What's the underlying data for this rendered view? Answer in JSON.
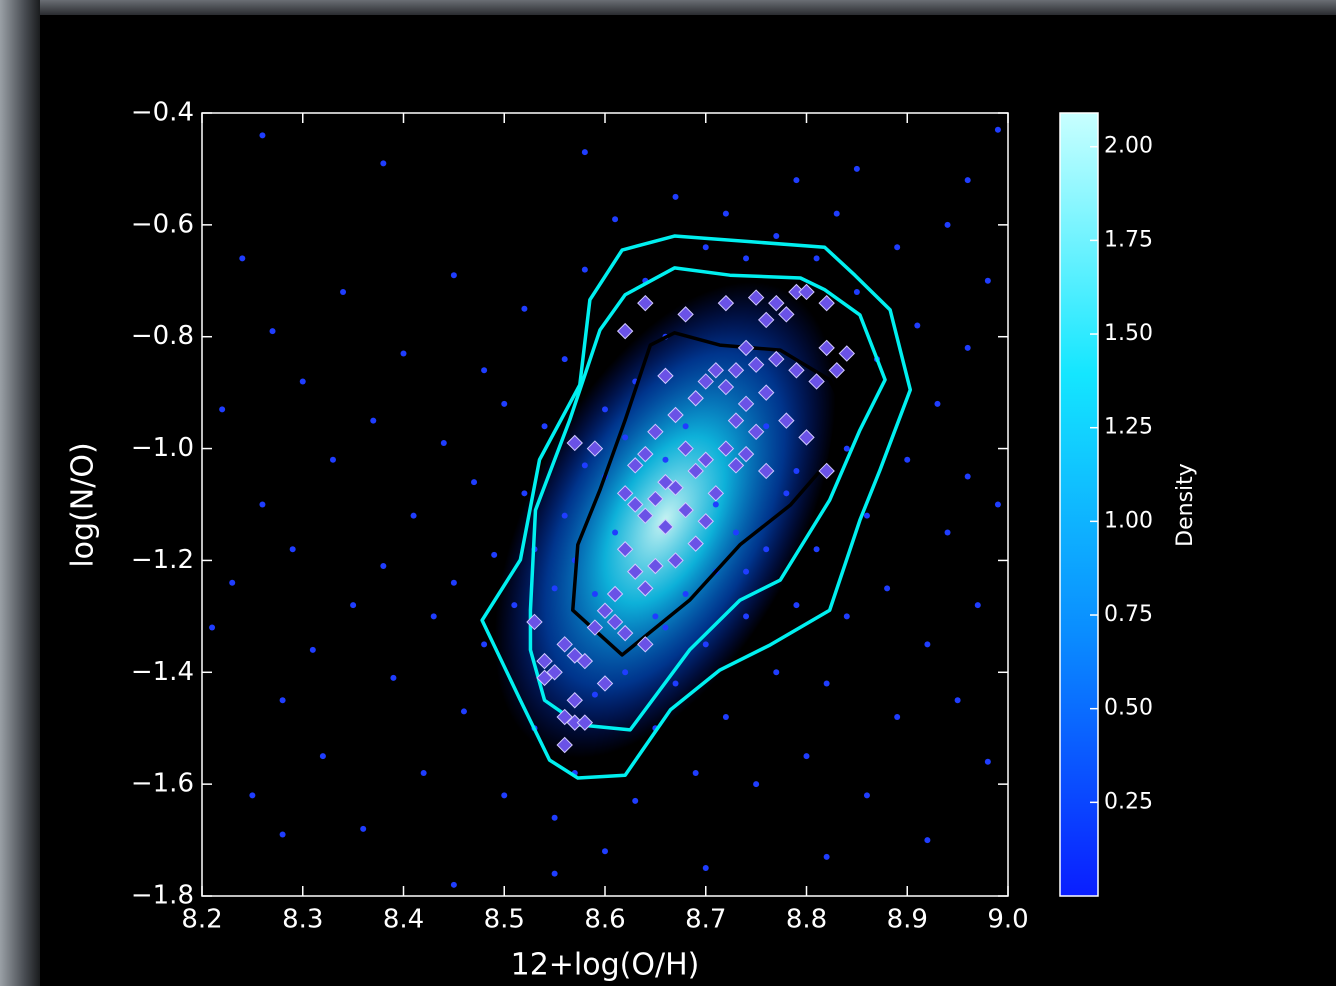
{
  "chart_data": {
    "type": "scatter",
    "xlabel": "12+log(O/H)",
    "ylabel": "log(N/O)",
    "xlim": [
      8.2,
      9.0
    ],
    "ylim": [
      -1.8,
      -0.4
    ],
    "xticks": [
      8.2,
      8.3,
      8.4,
      8.5,
      8.6,
      8.7,
      8.8,
      8.9,
      {
        "value": 9.0,
        "label": "9.0"
      }
    ],
    "yticks": [
      {
        "value": -1.8,
        "label": "−1.8"
      },
      {
        "value": -1.6,
        "label": "−1.6"
      },
      {
        "value": -1.4,
        "label": "−1.4"
      },
      {
        "value": -1.2,
        "label": "−1.2"
      },
      {
        "value": -1.0,
        "label": "−1.0"
      },
      {
        "value": -0.8,
        "label": "−0.8"
      },
      {
        "value": -0.6,
        "label": "−0.6"
      },
      {
        "value": -0.4,
        "label": "−0.4"
      }
    ],
    "series": [
      {
        "marker": "circle",
        "color": "#1f3dff",
        "x": [
          8.21,
          8.22,
          8.23,
          8.24,
          8.25,
          8.26,
          8.27,
          8.28,
          8.29,
          8.3,
          8.31,
          8.32,
          8.33,
          8.34,
          8.35,
          8.36,
          8.37,
          8.38,
          8.39,
          8.4,
          8.41,
          8.42,
          8.43,
          8.44,
          8.45,
          8.45,
          8.46,
          8.47,
          8.48,
          8.48,
          8.49,
          8.5,
          8.5,
          8.51,
          8.52,
          8.52,
          8.53,
          8.53,
          8.54,
          8.55,
          8.55,
          8.56,
          8.56,
          8.57,
          8.58,
          8.58,
          8.59,
          8.6,
          8.6,
          8.61,
          8.61,
          8.62,
          8.63,
          8.63,
          8.64,
          8.65,
          8.65,
          8.66,
          8.67,
          8.67,
          8.68,
          8.69,
          8.7,
          8.7,
          8.71,
          8.72,
          8.72,
          8.73,
          8.74,
          8.74,
          8.75,
          8.76,
          8.77,
          8.77,
          8.78,
          8.79,
          8.79,
          8.8,
          8.81,
          8.81,
          8.82,
          8.83,
          8.84,
          8.84,
          8.85,
          8.86,
          8.86,
          8.87,
          8.88,
          8.89,
          8.89,
          8.9,
          8.91,
          8.92,
          8.92,
          8.93,
          8.94,
          8.94,
          8.95,
          8.96,
          8.96,
          8.97,
          8.98,
          8.98,
          8.99,
          8.99,
          8.26,
          8.38,
          8.58,
          8.85,
          8.96,
          8.28,
          8.45,
          8.55,
          8.7,
          8.82,
          8.66,
          8.68,
          8.71,
          8.62,
          8.6,
          8.76,
          8.79,
          8.57,
          8.59,
          8.74,
          8.66
        ],
        "y": [
          -1.32,
          -0.93,
          -1.24,
          -0.66,
          -1.62,
          -1.1,
          -0.79,
          -1.45,
          -1.18,
          -0.88,
          -1.36,
          -1.55,
          -1.02,
          -0.72,
          -1.28,
          -1.68,
          -0.95,
          -1.21,
          -1.41,
          -0.83,
          -1.12,
          -1.58,
          -1.3,
          -0.99,
          -0.69,
          -1.24,
          -1.47,
          -1.06,
          -0.86,
          -1.35,
          -1.19,
          -1.62,
          -0.92,
          -1.28,
          -1.08,
          -0.75,
          -1.5,
          -1.18,
          -0.96,
          -1.25,
          -1.66,
          -0.84,
          -1.12,
          -1.58,
          -0.68,
          -1.03,
          -1.44,
          -0.93,
          -1.72,
          -0.59,
          -1.15,
          -1.4,
          -0.88,
          -1.63,
          -0.7,
          -1.3,
          -1.5,
          -0.8,
          -1.42,
          -0.55,
          -1.26,
          -1.58,
          -0.64,
          -1.35,
          -1.22,
          -0.58,
          -1.48,
          -1.15,
          -0.66,
          -1.3,
          -1.6,
          -1.18,
          -0.62,
          -1.4,
          -1.08,
          -0.52,
          -1.28,
          -1.55,
          -0.66,
          -1.18,
          -1.42,
          -0.58,
          -1.0,
          -1.3,
          -0.72,
          -1.12,
          -1.62,
          -0.84,
          -1.25,
          -0.64,
          -1.48,
          -1.02,
          -0.78,
          -1.35,
          -1.7,
          -0.92,
          -1.15,
          -0.6,
          -1.45,
          -1.05,
          -0.82,
          -1.28,
          -1.56,
          -0.7,
          -1.1,
          -0.43,
          -0.44,
          -0.49,
          -0.47,
          -0.5,
          -0.52,
          -1.69,
          -1.78,
          -1.76,
          -1.75,
          -1.73,
          -1.02,
          -0.96,
          -1.1,
          -0.98,
          -1.05,
          -0.96,
          -1.04,
          -1.2,
          -1.26,
          -1.22,
          -1.32
        ]
      },
      {
        "marker": "diamond",
        "color": "#6a52e6",
        "edgecolor": "#d0c8ff",
        "x": [
          8.64,
          8.62,
          8.68,
          8.72,
          8.75,
          8.77,
          8.79,
          8.8,
          8.76,
          8.78,
          8.82,
          8.84,
          8.82,
          8.83,
          8.81,
          8.74,
          8.73,
          8.71,
          8.7,
          8.72,
          8.75,
          8.77,
          8.79,
          8.76,
          8.74,
          8.66,
          8.69,
          8.67,
          8.65,
          8.64,
          8.63,
          8.68,
          8.69,
          8.7,
          8.72,
          8.73,
          8.74,
          8.76,
          8.75,
          8.78,
          8.8,
          8.82,
          8.57,
          8.59,
          8.62,
          8.63,
          8.64,
          8.65,
          8.66,
          8.67,
          8.68,
          8.7,
          8.71,
          8.69,
          8.67,
          8.65,
          8.63,
          8.62,
          8.64,
          8.61,
          8.6,
          8.61,
          8.62,
          8.59,
          8.64,
          8.53,
          8.54,
          8.54,
          8.55,
          8.56,
          8.57,
          8.58,
          8.6,
          8.57,
          8.56,
          8.57,
          8.58,
          8.56,
          8.66,
          8.73
        ],
        "y": [
          -0.74,
          -0.79,
          -0.76,
          -0.74,
          -0.73,
          -0.74,
          -0.72,
          -0.72,
          -0.77,
          -0.76,
          -0.74,
          -0.83,
          -0.82,
          -0.86,
          -0.88,
          -0.82,
          -0.86,
          -0.86,
          -0.88,
          -0.89,
          -0.85,
          -0.84,
          -0.86,
          -0.9,
          -0.92,
          -0.87,
          -0.91,
          -0.94,
          -0.97,
          -1.01,
          -1.03,
          -1.0,
          -1.04,
          -1.02,
          -1.0,
          -1.03,
          -1.01,
          -1.04,
          -0.97,
          -0.95,
          -0.98,
          -1.04,
          -0.99,
          -1.0,
          -1.08,
          -1.1,
          -1.12,
          -1.09,
          -1.14,
          -1.07,
          -1.11,
          -1.13,
          -1.08,
          -1.17,
          -1.2,
          -1.21,
          -1.22,
          -1.18,
          -1.25,
          -1.26,
          -1.29,
          -1.31,
          -1.33,
          -1.32,
          -1.35,
          -1.31,
          -1.38,
          -1.41,
          -1.4,
          -1.35,
          -1.37,
          -1.38,
          -1.42,
          -1.45,
          -1.48,
          -1.49,
          -1.49,
          -1.53,
          -1.06,
          -0.95
        ]
      }
    ],
    "contours": [
      {
        "color": "#00f0f0",
        "x": [
          8.478,
          8.516,
          8.535,
          8.575,
          8.585,
          8.617,
          8.669,
          8.818,
          8.848,
          8.883,
          8.903,
          8.873,
          8.853,
          8.823,
          8.764,
          8.714,
          8.665,
          8.62,
          8.573,
          8.545,
          8.516
        ],
        "y": [
          -1.307,
          -1.199,
          -1.02,
          -0.886,
          -0.734,
          -0.645,
          -0.62,
          -0.64,
          -0.69,
          -0.752,
          -0.895,
          -1.038,
          -1.128,
          -1.289,
          -1.351,
          -1.396,
          -1.467,
          -1.584,
          -1.589,
          -1.557,
          -1.45
        ]
      },
      {
        "color": "#00f0f0",
        "x": [
          8.526,
          8.531,
          8.565,
          8.595,
          8.62,
          8.669,
          8.724,
          8.794,
          8.818,
          8.853,
          8.878,
          8.853,
          8.823,
          8.774,
          8.734,
          8.684,
          8.625,
          8.575,
          8.54,
          8.526
        ],
        "y": [
          -1.289,
          -1.11,
          -0.949,
          -0.788,
          -0.725,
          -0.677,
          -0.69,
          -0.695,
          -0.716,
          -0.761,
          -0.877,
          -0.967,
          -1.092,
          -1.235,
          -1.271,
          -1.36,
          -1.503,
          -1.494,
          -1.45,
          -1.36
        ]
      },
      {
        "color": "#000000",
        "x": [
          8.568,
          8.573,
          8.595,
          8.62,
          8.645,
          8.669,
          8.714,
          8.774,
          8.823,
          8.833,
          8.823,
          8.784,
          8.734,
          8.684,
          8.617
        ],
        "y": [
          -1.289,
          -1.172,
          -1.074,
          -0.949,
          -0.815,
          -0.793,
          -0.815,
          -0.824,
          -0.877,
          -0.913,
          -1.02,
          -1.101,
          -1.172,
          -1.271,
          -1.369
        ]
      }
    ],
    "colorbar": {
      "label": "Density",
      "clim": [
        0,
        2.09
      ],
      "colormap": [
        "#0a1eff",
        "#0a8cff",
        "#14e6ff",
        "#c8ffff"
      ],
      "ticks": [
        0.25,
        {
          "value": 0.5,
          "label": "0.50"
        },
        0.75,
        {
          "value": 1.0,
          "label": "1.00"
        },
        1.25,
        {
          "value": 1.5,
          "label": "1.50"
        },
        1.75,
        {
          "value": 2.0,
          "label": "2.00"
        }
      ]
    }
  }
}
